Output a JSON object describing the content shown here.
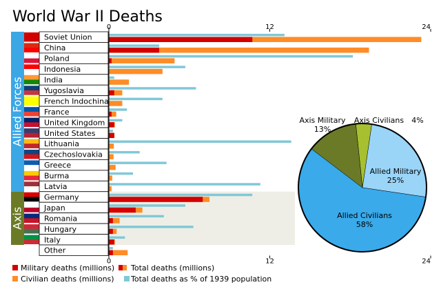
{
  "chart_data": [
    {
      "type": "bar",
      "title": "World War II Deaths",
      "categories": [
        "Soviet Union",
        "China",
        "Poland",
        "Indonesia",
        "India",
        "Yugoslavia",
        "French Indochina",
        "France",
        "United Kingdom",
        "United States",
        "Lithuania",
        "Czechoslovakia",
        "Greece",
        "Burma",
        "Latvia",
        "Germany",
        "Japan",
        "Romania",
        "Hungary",
        "Italy",
        "Other"
      ],
      "groups": [
        {
          "name": "Allied Forces",
          "color": "#3ba7e5",
          "first": "Soviet Union",
          "last": "Latvia"
        },
        {
          "name": "Axis",
          "color": "#6b7a26",
          "first": "Germany",
          "last": "Italy"
        }
      ],
      "series": [
        {
          "name": "Total deaths (millions)",
          "color": "#ff8c26",
          "values": [
            23.3,
            19.4,
            4.9,
            4.0,
            1.5,
            1.0,
            1.0,
            0.55,
            0.45,
            0.42,
            0.37,
            0.35,
            0.5,
            0.25,
            0.2,
            7.5,
            2.5,
            0.8,
            0.58,
            0.45,
            1.4
          ]
        },
        {
          "name": "Military deaths (millions)",
          "color": "#d40000",
          "values": [
            10.7,
            3.75,
            0.2,
            0,
            0,
            0.4,
            0,
            0.2,
            0.4,
            0.4,
            0,
            0,
            0,
            0,
            0,
            7.0,
            2.0,
            0.3,
            0.3,
            0.4,
            0.3
          ]
        },
        {
          "name": "Total deaths as % of 1939 population",
          "color": "#80c8d8",
          "values": [
            13.1,
            3.75,
            18.2,
            5.7,
            0.4,
            6.5,
            4.0,
            1.35,
            1.0,
            0.3,
            13.6,
            2.3,
            4.3,
            1.8,
            11.3,
            10.7,
            5.7,
            4.1,
            6.3,
            1.2,
            0.3
          ]
        }
      ],
      "civilian_legend": {
        "name": "Civilian deaths (millions)",
        "color": "#ff8c26"
      },
      "xlim": [
        0,
        24
      ],
      "xticks": [
        0,
        12,
        24
      ]
    },
    {
      "type": "pie",
      "labels": [
        "Axis Civilians",
        "Allied Military",
        "Allied Civilians",
        "Axis Military"
      ],
      "values": [
        4,
        25,
        58,
        13
      ],
      "value_labels": [
        "4%",
        "25%",
        "58%",
        "13%"
      ],
      "colors": [
        "#a7c030",
        "#9ad4f7",
        "#3aaaea",
        "#6b7a26"
      ]
    }
  ]
}
